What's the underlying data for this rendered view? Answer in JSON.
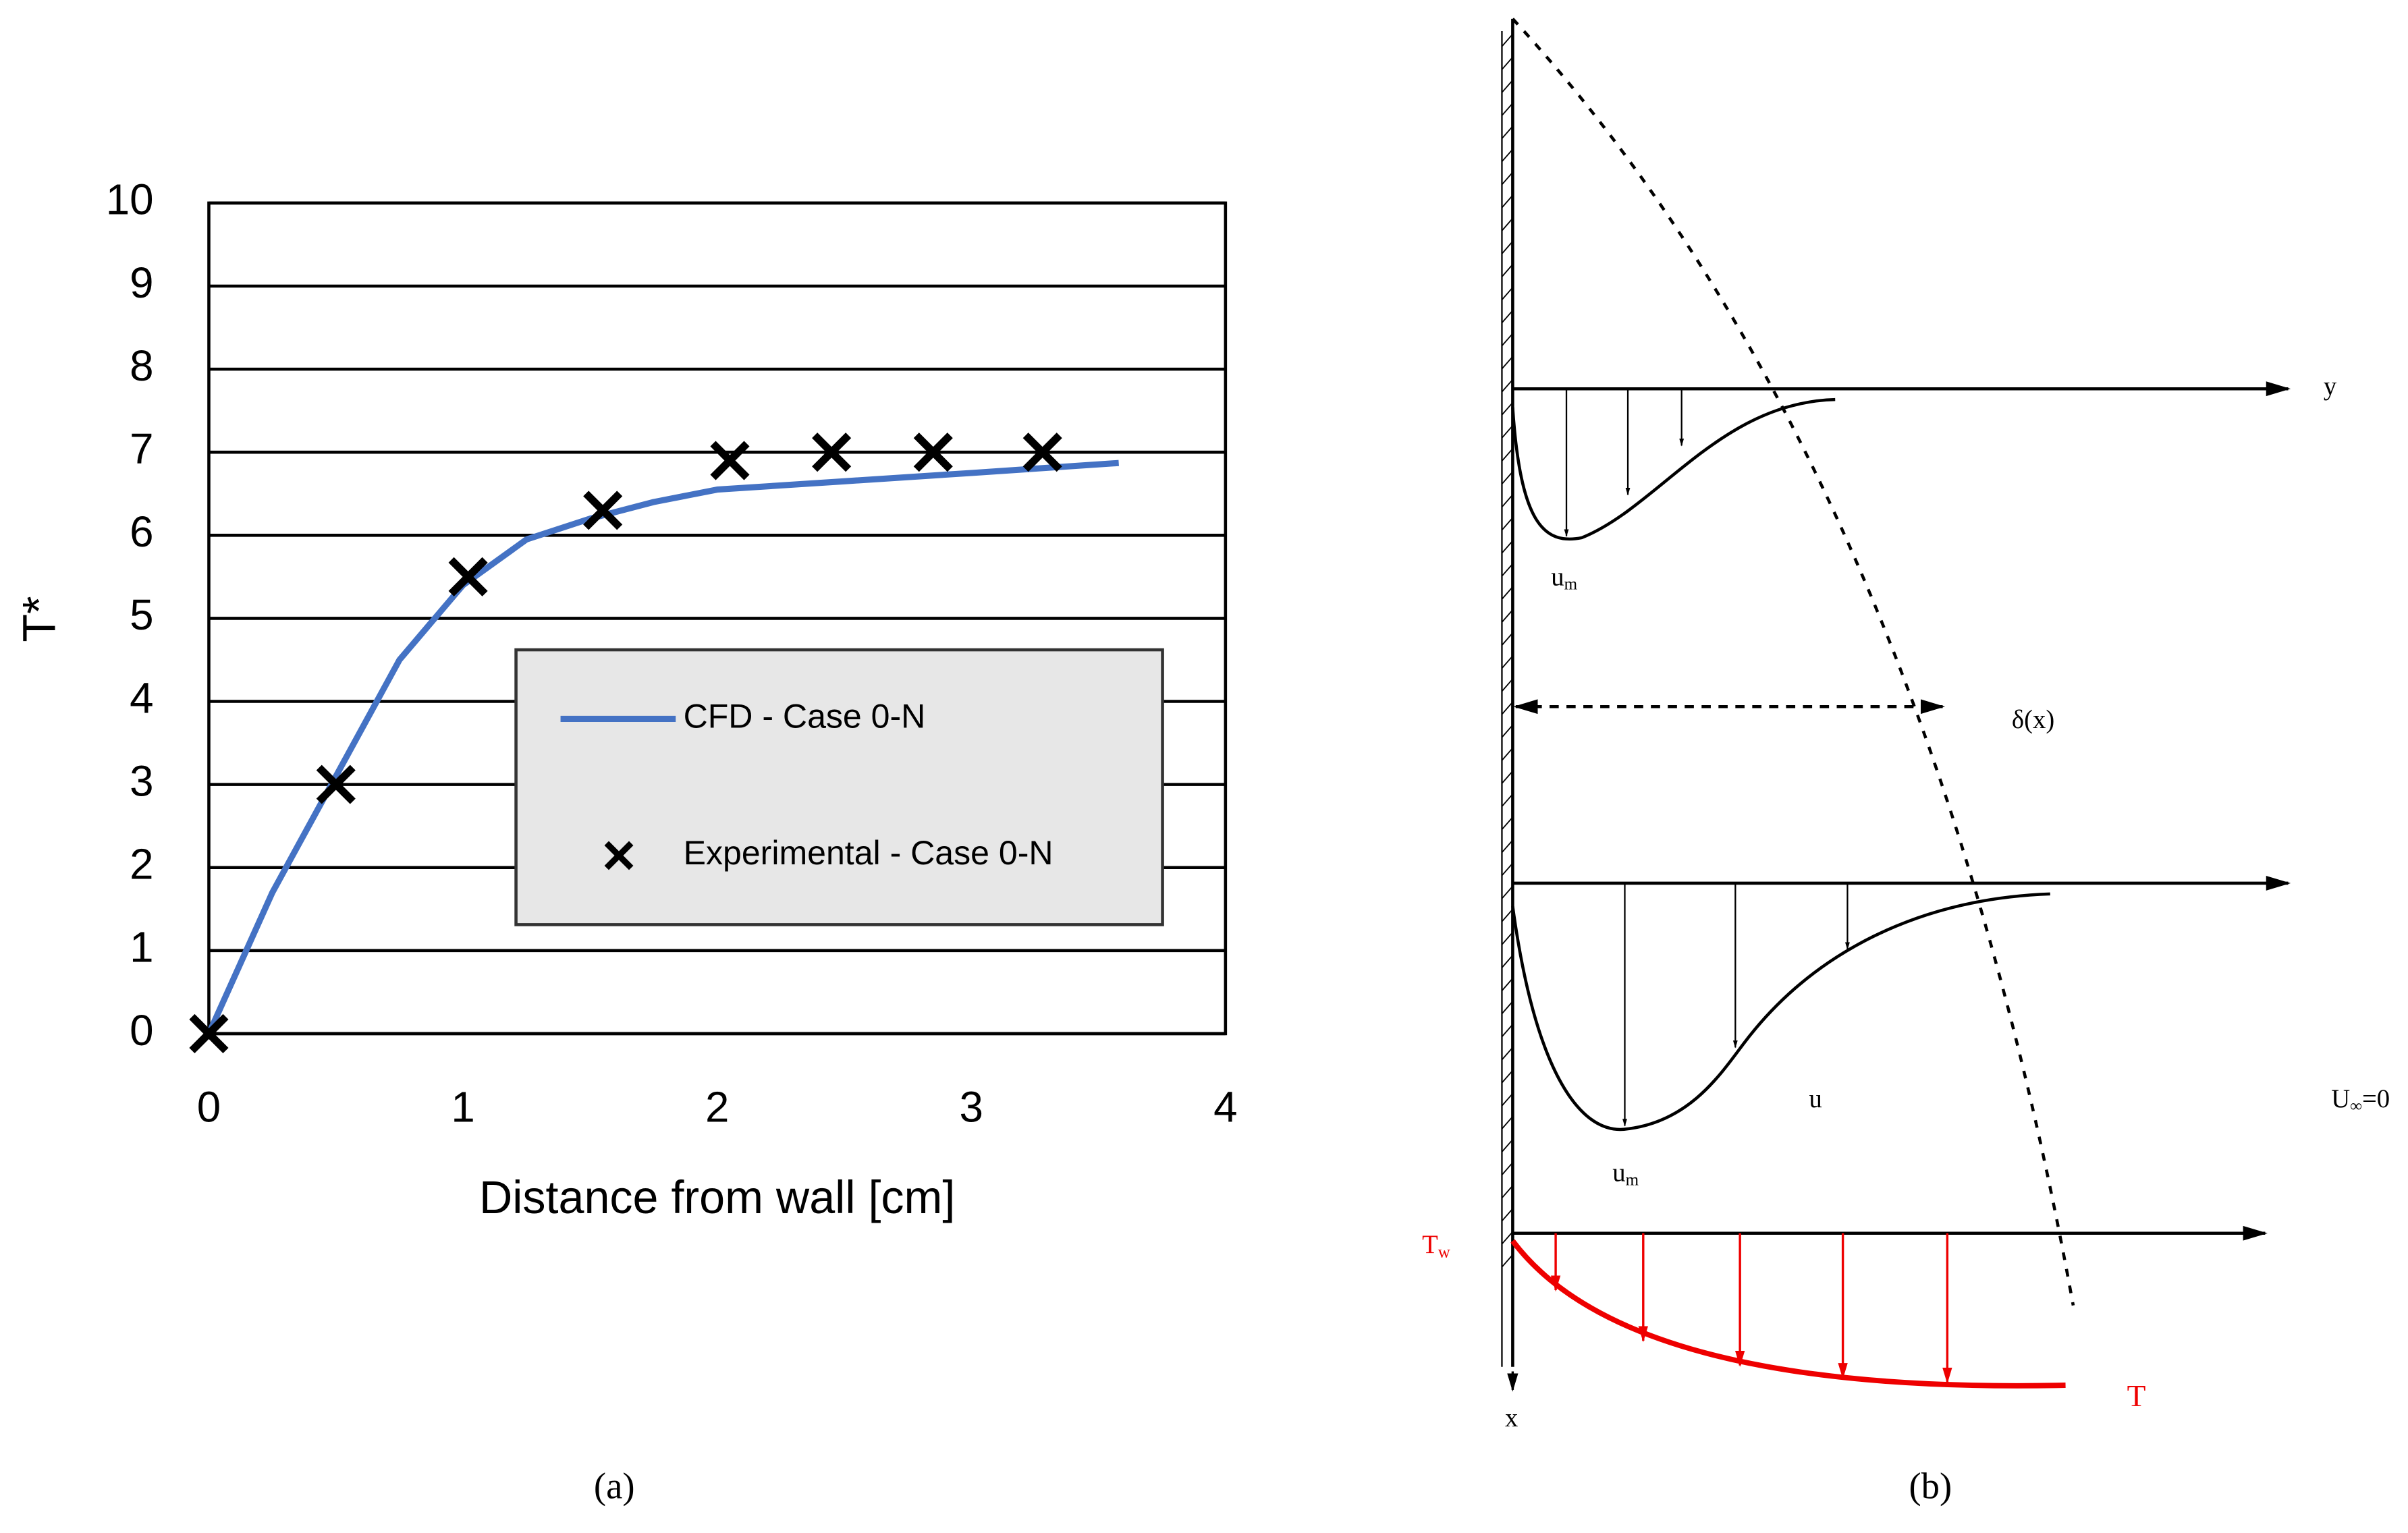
{
  "chart_data": {
    "type": "line",
    "xlabel": "Distance from wall [cm]",
    "ylabel": "T*",
    "xlim": [
      0,
      4
    ],
    "xticks": [
      0,
      1,
      2,
      3,
      4
    ],
    "ylim": [
      0,
      10
    ],
    "yticks": [
      0,
      1,
      2,
      3,
      4,
      5,
      6,
      7,
      8,
      9,
      10
    ],
    "grid": true,
    "series": [
      {
        "name": "CFD - Case 0-N",
        "type": "line",
        "color": "#4472c4",
        "x": [
          0,
          0.25,
          0.5,
          0.75,
          1.0,
          1.25,
          1.5,
          1.75,
          2.0,
          2.5,
          3.0,
          3.58
        ],
        "values": [
          0,
          1.7,
          3.1,
          4.5,
          5.4,
          5.95,
          6.2,
          6.4,
          6.55,
          6.65,
          6.75,
          6.87
        ]
      },
      {
        "name": "Experimental - Case 0-N",
        "type": "scatter",
        "color": "#000000",
        "x": [
          0,
          0.5,
          1.02,
          1.55,
          2.05,
          2.45,
          2.85,
          3.28
        ],
        "values": [
          0,
          3.0,
          5.5,
          6.3,
          6.9,
          7.0,
          7.0,
          7.0
        ]
      }
    ]
  },
  "diagram": {
    "y_axis": "y",
    "um_top": {
      "base": "u",
      "sub": "m"
    },
    "delta": "δ(x)",
    "u": "u",
    "um_bottom": {
      "base": "u",
      "sub": "m"
    },
    "u_inf": {
      "base": "U",
      "sub": "∞",
      "rest": "=0"
    },
    "tw": {
      "base": "T",
      "sub": "w"
    },
    "x_axis": "x",
    "t": "T"
  },
  "captions": [
    "(a)",
    "(b)"
  ]
}
